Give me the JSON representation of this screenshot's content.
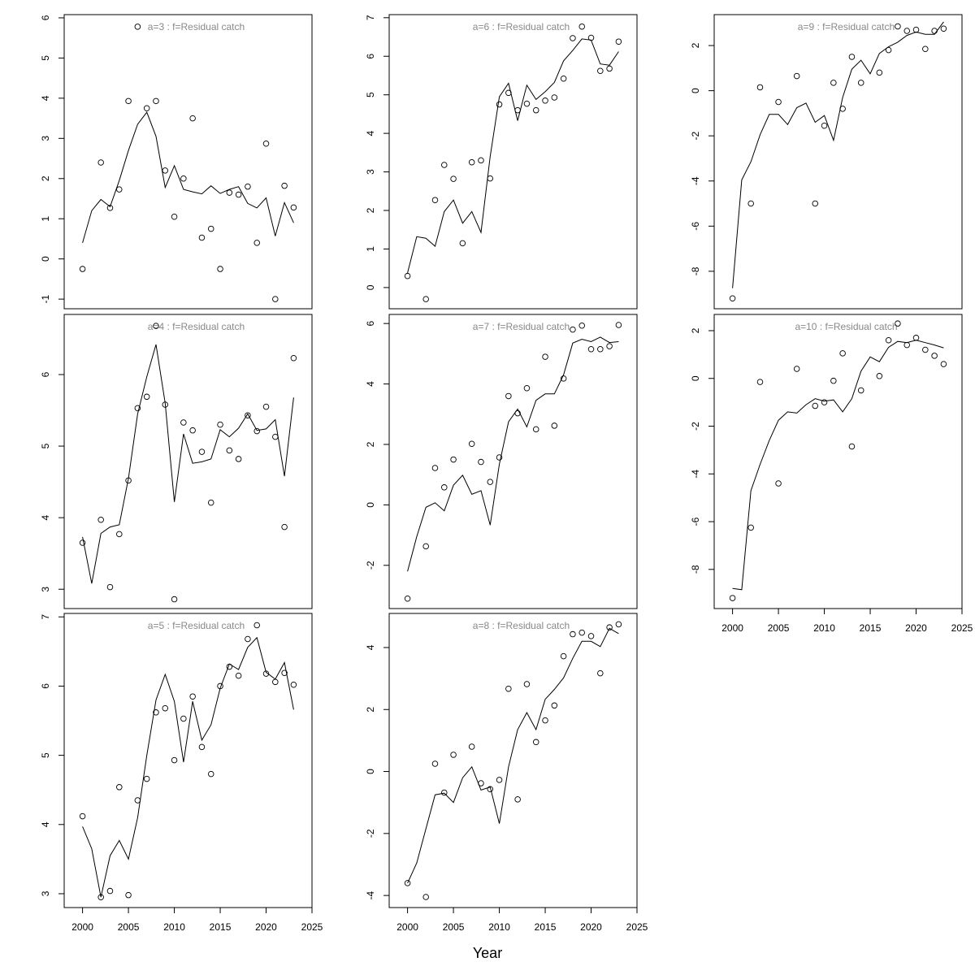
{
  "chart_data": [
    {
      "type": "line",
      "title": "a=3  :  f=Residual catch",
      "x": [
        2000,
        2001,
        2002,
        2003,
        2004,
        2005,
        2006,
        2007,
        2008,
        2009,
        2010,
        2011,
        2012,
        2013,
        2014,
        2015,
        2016,
        2017,
        2018,
        2019,
        2020,
        2021,
        2022,
        2023
      ],
      "series": [
        {
          "style": "points",
          "color": "#000000",
          "values": [
            -0.25,
            null,
            2.4,
            1.27,
            1.73,
            3.93,
            5.78,
            3.75,
            3.93,
            2.2,
            1.05,
            2.0,
            3.5,
            0.53,
            0.75,
            -0.25,
            1.65,
            1.6,
            1.8,
            0.4,
            2.87,
            -1.0,
            1.82,
            1.28
          ]
        },
        {
          "style": "line",
          "color": "#000000",
          "values": [
            0.4,
            1.2,
            1.48,
            1.3,
            1.95,
            2.7,
            3.35,
            3.65,
            3.05,
            1.78,
            2.32,
            1.73,
            1.67,
            1.62,
            1.82,
            1.63,
            1.73,
            1.8,
            1.38,
            1.27,
            1.52,
            0.57,
            1.4,
            0.9
          ]
        }
      ],
      "xlim": [
        1998,
        2025
      ],
      "ylim": [
        -1.24,
        6.08
      ],
      "yticks": [
        -1,
        0,
        1,
        2,
        3,
        4,
        5,
        6
      ],
      "xticks": [
        2000,
        2005,
        2010,
        2015,
        2020,
        2025
      ],
      "show_xaxis": false
    },
    {
      "type": "line",
      "title": "a=4  :  f=Residual catch",
      "x": [
        2000,
        2001,
        2002,
        2003,
        2004,
        2005,
        2006,
        2007,
        2008,
        2009,
        2010,
        2011,
        2012,
        2013,
        2014,
        2015,
        2016,
        2017,
        2018,
        2019,
        2020,
        2021,
        2022,
        2023
      ],
      "series": [
        {
          "style": "points",
          "color": "#000000",
          "values": [
            3.65,
            null,
            3.97,
            3.03,
            3.77,
            4.52,
            5.53,
            5.69,
            6.68,
            5.58,
            2.86,
            5.33,
            5.22,
            4.92,
            4.21,
            5.3,
            4.94,
            4.82,
            5.43,
            5.21,
            5.55,
            5.13,
            3.87,
            6.23
          ]
        },
        {
          "style": "line",
          "color": "#000000",
          "values": [
            3.73,
            3.08,
            3.78,
            3.87,
            3.9,
            4.55,
            5.45,
            5.97,
            6.42,
            5.6,
            4.22,
            5.17,
            4.76,
            4.78,
            4.82,
            5.23,
            5.13,
            5.25,
            5.45,
            5.22,
            5.24,
            5.37,
            4.58,
            5.68
          ]
        }
      ],
      "xlim": [
        1998,
        2025
      ],
      "ylim": [
        2.73,
        6.84
      ],
      "yticks": [
        3,
        4,
        5,
        6
      ],
      "xticks": [
        2000,
        2005,
        2010,
        2015,
        2020,
        2025
      ],
      "show_xaxis": false
    },
    {
      "type": "line",
      "title": "a=5  :  f=Residual catch",
      "x": [
        2000,
        2001,
        2002,
        2003,
        2004,
        2005,
        2006,
        2007,
        2008,
        2009,
        2010,
        2011,
        2012,
        2013,
        2014,
        2015,
        2016,
        2017,
        2018,
        2019,
        2020,
        2021,
        2022,
        2023
      ],
      "series": [
        {
          "style": "points",
          "color": "#000000",
          "values": [
            4.12,
            null,
            2.95,
            3.04,
            4.54,
            2.98,
            4.35,
            4.66,
            5.62,
            5.68,
            4.93,
            5.53,
            5.85,
            5.12,
            4.73,
            6.0,
            6.28,
            6.15,
            6.68,
            6.88,
            6.18,
            6.06,
            6.19,
            6.02
          ]
        },
        {
          "style": "line",
          "color": "#000000",
          "values": [
            3.97,
            3.65,
            2.95,
            3.55,
            3.77,
            3.5,
            4.1,
            5.0,
            5.8,
            6.17,
            5.78,
            4.9,
            5.78,
            5.22,
            5.44,
            5.97,
            6.32,
            6.24,
            6.56,
            6.7,
            6.2,
            6.1,
            6.34,
            5.66
          ]
        }
      ],
      "xlim": [
        1998,
        2025
      ],
      "ylim": [
        2.8,
        7.05
      ],
      "yticks": [
        3,
        4,
        5,
        6,
        7
      ],
      "xticks": [
        2000,
        2005,
        2010,
        2015,
        2020,
        2025
      ],
      "show_xaxis": true
    },
    {
      "type": "line",
      "title": "a=6  :  f=Residual catch",
      "x": [
        2000,
        2001,
        2002,
        2003,
        2004,
        2005,
        2006,
        2007,
        2008,
        2009,
        2010,
        2011,
        2012,
        2013,
        2014,
        2015,
        2016,
        2017,
        2018,
        2019,
        2020,
        2021,
        2022,
        2023
      ],
      "series": [
        {
          "style": "points",
          "color": "#000000",
          "values": [
            0.3,
            null,
            -0.3,
            2.27,
            3.18,
            2.82,
            1.15,
            3.25,
            3.3,
            2.83,
            4.75,
            5.05,
            4.6,
            4.77,
            4.6,
            4.85,
            4.93,
            5.42,
            6.47,
            6.77,
            6.48,
            5.62,
            5.68,
            6.38
          ]
        },
        {
          "style": "line",
          "color": "#000000",
          "values": [
            0.38,
            1.32,
            1.28,
            1.07,
            1.97,
            2.27,
            1.67,
            1.97,
            1.43,
            3.4,
            4.95,
            5.3,
            4.33,
            5.25,
            4.88,
            5.08,
            5.32,
            5.88,
            6.15,
            6.45,
            6.42,
            5.8,
            5.77,
            6.12
          ]
        }
      ],
      "xlim": [
        1998,
        2025
      ],
      "ylim": [
        -0.55,
        7.08
      ],
      "yticks": [
        0,
        1,
        2,
        3,
        4,
        5,
        6,
        7
      ],
      "xticks": [
        2000,
        2005,
        2010,
        2015,
        2020,
        2025
      ],
      "show_xaxis": false
    },
    {
      "type": "line",
      "title": "a=7  :  f=Residual catch",
      "x": [
        2000,
        2001,
        2002,
        2003,
        2004,
        2005,
        2006,
        2007,
        2008,
        2009,
        2010,
        2011,
        2012,
        2013,
        2014,
        2015,
        2016,
        2017,
        2018,
        2019,
        2020,
        2021,
        2022,
        2023
      ],
      "series": [
        {
          "style": "points",
          "color": "#000000",
          "values": [
            -3.1,
            null,
            -1.37,
            1.22,
            0.58,
            1.5,
            null,
            2.02,
            1.42,
            0.76,
            1.57,
            3.6,
            3.03,
            3.86,
            2.5,
            4.9,
            2.62,
            4.18,
            5.8,
            5.93,
            5.15,
            5.15,
            5.25,
            5.95
          ]
        },
        {
          "style": "line",
          "color": "#000000",
          "values": [
            -2.2,
            -1.05,
            -0.08,
            0.07,
            -0.2,
            0.65,
            0.98,
            0.35,
            0.47,
            -0.67,
            1.35,
            2.75,
            3.17,
            2.58,
            3.46,
            3.67,
            3.67,
            4.3,
            5.35,
            5.48,
            5.4,
            5.55,
            5.37,
            5.4
          ]
        }
      ],
      "xlim": [
        1998,
        2025
      ],
      "ylim": [
        -3.43,
        6.3
      ],
      "yticks": [
        -2,
        0,
        2,
        4,
        6
      ],
      "xticks": [
        2000,
        2005,
        2010,
        2015,
        2020,
        2025
      ],
      "show_xaxis": false
    },
    {
      "type": "line",
      "title": "a=8  :  f=Residual catch",
      "x": [
        2000,
        2001,
        2002,
        2003,
        2004,
        2005,
        2006,
        2007,
        2008,
        2009,
        2010,
        2011,
        2012,
        2013,
        2014,
        2015,
        2016,
        2017,
        2018,
        2019,
        2020,
        2021,
        2022,
        2023
      ],
      "series": [
        {
          "style": "points",
          "color": "#000000",
          "values": [
            -3.6,
            null,
            -4.05,
            0.25,
            -0.68,
            0.54,
            null,
            0.8,
            -0.38,
            -0.57,
            -0.27,
            2.67,
            -0.9,
            2.82,
            0.95,
            1.65,
            2.13,
            3.72,
            4.43,
            4.48,
            4.37,
            3.17,
            4.65,
            4.75
          ]
        },
        {
          "style": "line",
          "color": "#000000",
          "values": [
            -3.6,
            -2.95,
            -1.85,
            -0.75,
            -0.7,
            -1.0,
            -0.2,
            0.15,
            -0.6,
            -0.5,
            -1.68,
            0.15,
            1.35,
            1.9,
            1.35,
            2.33,
            2.65,
            3.02,
            3.65,
            4.2,
            4.2,
            4.03,
            4.62,
            4.45
          ]
        }
      ],
      "xlim": [
        1998,
        2025
      ],
      "ylim": [
        -4.39,
        5.1
      ],
      "yticks": [
        -4,
        -2,
        0,
        2,
        4
      ],
      "xticks": [
        2000,
        2005,
        2010,
        2015,
        2020,
        2025
      ],
      "show_xaxis": true
    },
    {
      "type": "line",
      "title": "a=9  :  f=Residual catch",
      "x": [
        2000,
        2001,
        2002,
        2003,
        2004,
        2005,
        2006,
        2007,
        2008,
        2009,
        2010,
        2011,
        2012,
        2013,
        2014,
        2015,
        2016,
        2017,
        2018,
        2019,
        2020,
        2021,
        2022,
        2023
      ],
      "series": [
        {
          "style": "points",
          "color": "#000000",
          "values": [
            -9.2,
            null,
            -5.0,
            0.15,
            null,
            -0.5,
            null,
            0.65,
            null,
            -5.0,
            -1.55,
            0.35,
            -0.8,
            1.5,
            0.35,
            null,
            0.8,
            1.8,
            2.85,
            2.65,
            2.7,
            1.85,
            2.65,
            2.75
          ]
        },
        {
          "style": "line",
          "color": "#000000",
          "values": [
            -8.75,
            -3.95,
            -3.15,
            -1.95,
            -1.05,
            -1.05,
            -1.5,
            -0.75,
            -0.55,
            -1.4,
            -1.1,
            -2.2,
            -0.3,
            0.95,
            1.35,
            0.75,
            1.65,
            1.95,
            2.15,
            2.45,
            2.6,
            2.5,
            2.5,
            3.05
          ]
        }
      ],
      "xlim": [
        1998,
        2025
      ],
      "ylim": [
        -9.66,
        3.37
      ],
      "yticks": [
        -8,
        -6,
        -4,
        -2,
        0,
        2
      ],
      "xticks": [
        2000,
        2005,
        2010,
        2015,
        2020,
        2025
      ],
      "show_xaxis": false
    },
    {
      "type": "line",
      "title": "a=10  :  f=Residual catch",
      "x": [
        2000,
        2001,
        2002,
        2003,
        2004,
        2005,
        2006,
        2007,
        2008,
        2009,
        2010,
        2011,
        2012,
        2013,
        2014,
        2015,
        2016,
        2017,
        2018,
        2019,
        2020,
        2021,
        2022,
        2023
      ],
      "series": [
        {
          "style": "points",
          "color": "#000000",
          "values": [
            -9.2,
            null,
            -6.25,
            -0.15,
            null,
            -4.4,
            null,
            0.4,
            null,
            -1.15,
            -1.0,
            -0.1,
            1.05,
            -2.85,
            -0.5,
            null,
            0.1,
            1.6,
            2.3,
            1.4,
            1.7,
            1.2,
            0.95,
            0.6
          ]
        },
        {
          "style": "line",
          "color": "#000000",
          "values": [
            -8.8,
            -8.85,
            -4.7,
            -3.6,
            -2.6,
            -1.75,
            -1.4,
            -1.45,
            -1.1,
            -0.85,
            -0.95,
            -0.9,
            -1.4,
            -0.85,
            0.3,
            0.9,
            0.7,
            1.3,
            1.55,
            1.5,
            1.6,
            1.5,
            1.4,
            1.28
          ]
        }
      ],
      "xlim": [
        1998,
        2025
      ],
      "ylim": [
        -9.64,
        2.68
      ],
      "yticks": [
        -8,
        -6,
        -4,
        -2,
        0,
        2
      ],
      "xticks": [
        2000,
        2005,
        2010,
        2015,
        2020,
        2025
      ],
      "show_xaxis": true
    }
  ],
  "xlabel": "Year"
}
